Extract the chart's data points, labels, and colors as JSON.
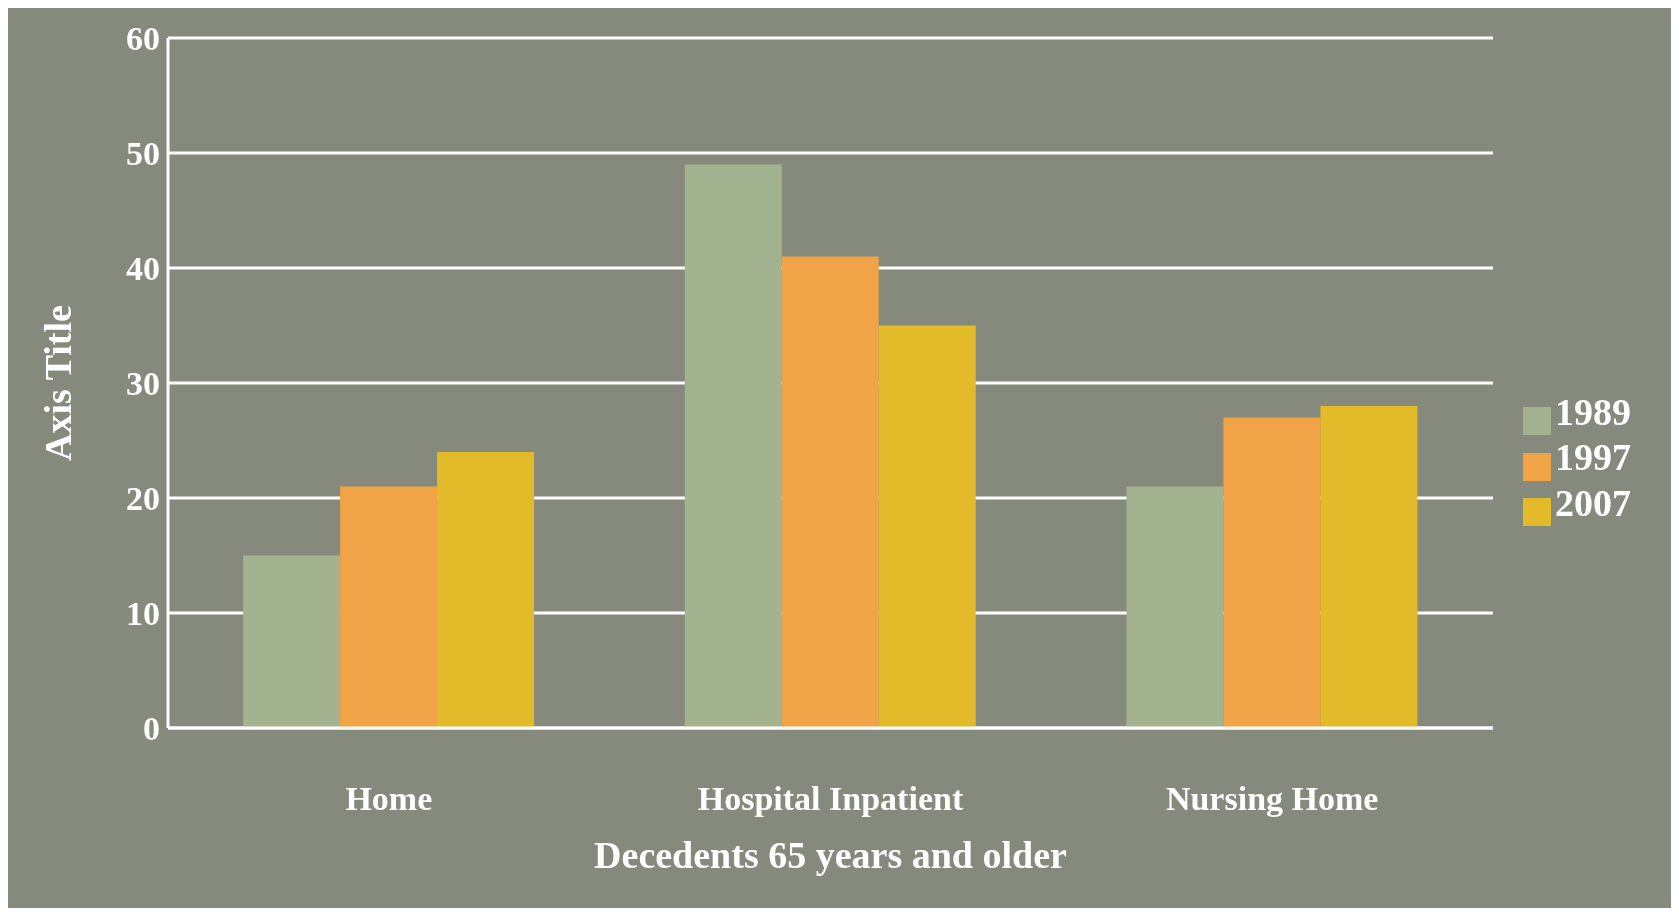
{
  "chart_data": {
    "type": "bar",
    "xlabel": "Decedents 65 years and older",
    "ylabel": "Axis Title",
    "categories": [
      "Home",
      "Hospital Inpatient",
      "Nursing Home"
    ],
    "series": [
      {
        "name": "1989",
        "color": "#a4b38f",
        "values": [
          15,
          49,
          21
        ]
      },
      {
        "name": "1997",
        "color": "#f0a447",
        "values": [
          21,
          41,
          27
        ]
      },
      {
        "name": "2007",
        "color": "#e3bb2a",
        "values": [
          24,
          35,
          28
        ]
      }
    ],
    "ylim": [
      0,
      60
    ],
    "yticks": [
      0,
      10,
      20,
      30,
      40,
      50,
      60
    ],
    "grid": "y",
    "legend": "right"
  }
}
